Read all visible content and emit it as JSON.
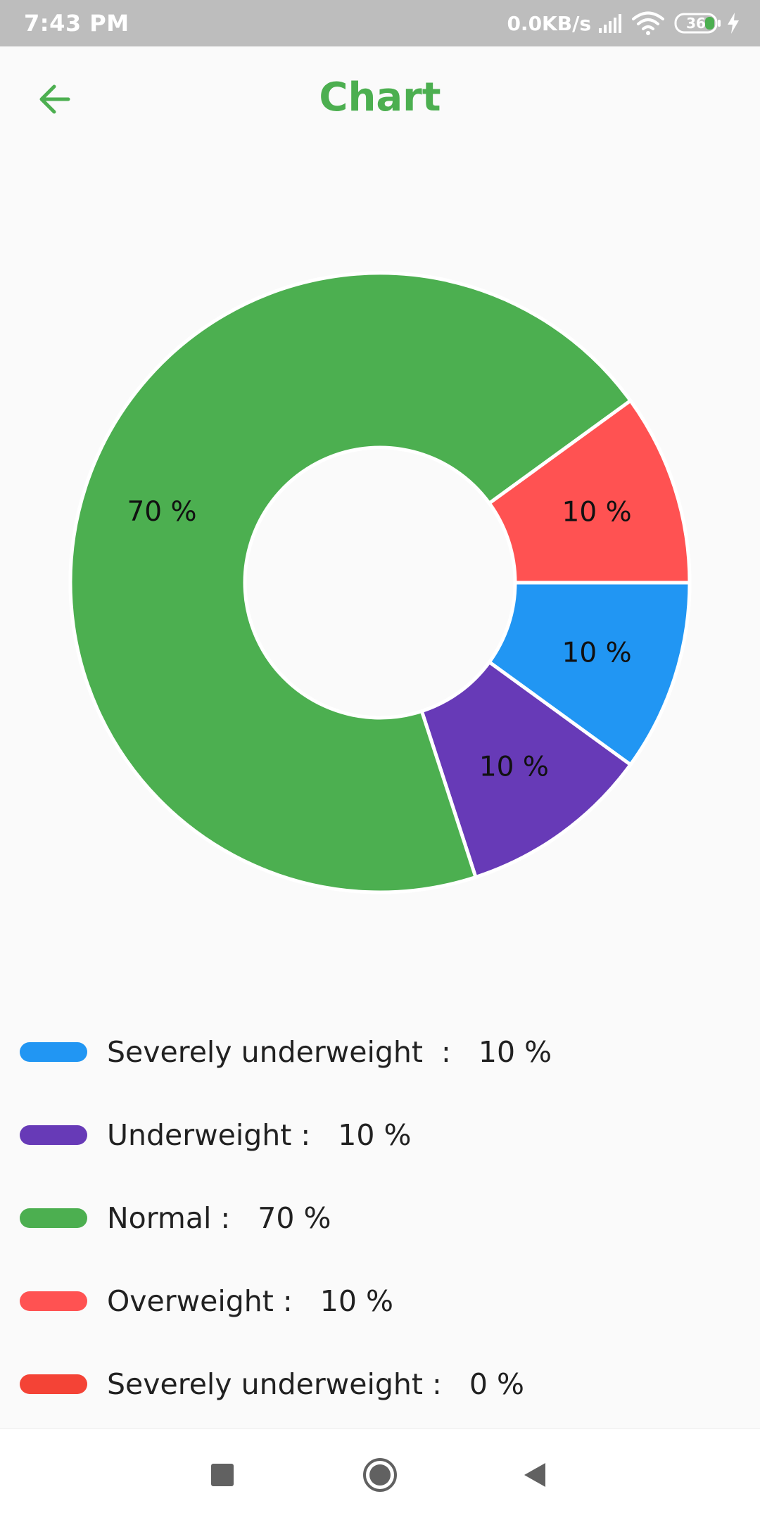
{
  "status_bar": {
    "time": "7:43 PM",
    "net_speed": "0.0KB/s",
    "battery": "36",
    "icons": [
      "signal-icon",
      "wifi-icon",
      "battery-icon",
      "charging-bolt-icon"
    ]
  },
  "app_bar": {
    "title": "Chart",
    "back_icon": "arrow-back-icon"
  },
  "chart_data": {
    "type": "pie",
    "style": "donut",
    "start_angle_deg": 0,
    "direction": "clockwise",
    "slices": [
      {
        "value": 10,
        "label": "10 %",
        "color": "#2196F3"
      },
      {
        "value": 10,
        "label": "10 %",
        "color": "#673AB7"
      },
      {
        "value": 70,
        "label": "70 %",
        "color": "#4CAF50"
      },
      {
        "value": 10,
        "label": "10 %",
        "color": "#FF5252"
      },
      {
        "value": 0,
        "label": "",
        "color": "#F44336"
      }
    ]
  },
  "legend": [
    {
      "text": "Severely underweight  :   10 %",
      "color": "#2196F3"
    },
    {
      "text": "Underweight :   10 %",
      "color": "#673AB7"
    },
    {
      "text": "Normal :   70 %",
      "color": "#4CAF50"
    },
    {
      "text": "Overweight :   10 %",
      "color": "#FF5252"
    },
    {
      "text": "Severely underweight :   0 %",
      "color": "#F44336"
    }
  ],
  "colors": {
    "accent": "#4CAF50",
    "status_bar": "#BDBDBD",
    "nav_icons": "#616161"
  },
  "nav_bar": {
    "icons": [
      "recents-square-icon",
      "home-circle-icon",
      "back-triangle-icon"
    ]
  }
}
